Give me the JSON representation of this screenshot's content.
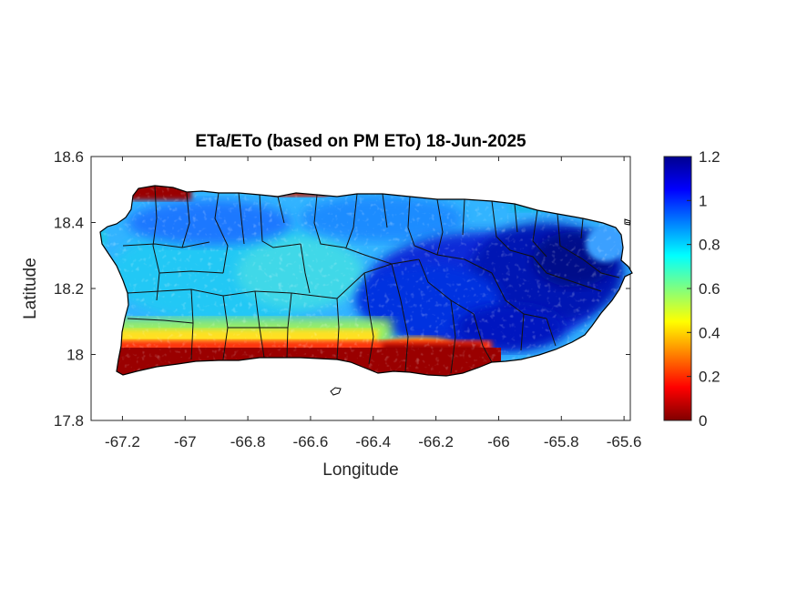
{
  "chart_data": {
    "type": "heatmap",
    "title": "ETa/ETo (based on PM ETo) 18-Jun-2025",
    "xlabel": "Longitude",
    "ylabel": "Latitude",
    "xlim": [
      -67.3,
      -65.58
    ],
    "ylim": [
      17.8,
      18.6
    ],
    "xticks": [
      -67.2,
      -67,
      -66.8,
      -66.6,
      -66.4,
      -66.2,
      -66,
      -65.8,
      -65.6
    ],
    "xtick_labels": [
      "-67.2",
      "-67",
      "-66.8",
      "-66.6",
      "-66.4",
      "-66.2",
      "-66",
      "-65.8",
      "-65.6"
    ],
    "yticks": [
      17.8,
      18,
      18.2,
      18.4,
      18.6
    ],
    "ytick_labels": [
      "17.8",
      "18",
      "18.2",
      "18.4",
      "18.6"
    ],
    "colorbar": {
      "colormap": "jet",
      "clim": [
        0,
        1.2
      ],
      "ticks": [
        0,
        0.2,
        0.4,
        0.6,
        0.8,
        1,
        1.2
      ],
      "tick_labels": [
        "0",
        "0.2",
        "0.4",
        "0.6",
        "0.8",
        "1",
        "1.2"
      ]
    },
    "region": "Puerto Rico",
    "pattern_summary": [
      {
        "area": "south coast",
        "value_range": [
          0.0,
          0.3
        ]
      },
      {
        "area": "south-central foothills",
        "value_range": [
          0.4,
          0.6
        ]
      },
      {
        "area": "west and central interior",
        "value_range": [
          0.7,
          0.85
        ]
      },
      {
        "area": "east and southeast interior",
        "value_range": [
          0.95,
          1.2
        ]
      },
      {
        "area": "northwest coast",
        "value_range": [
          0.0,
          0.2
        ]
      }
    ],
    "grid": false
  }
}
